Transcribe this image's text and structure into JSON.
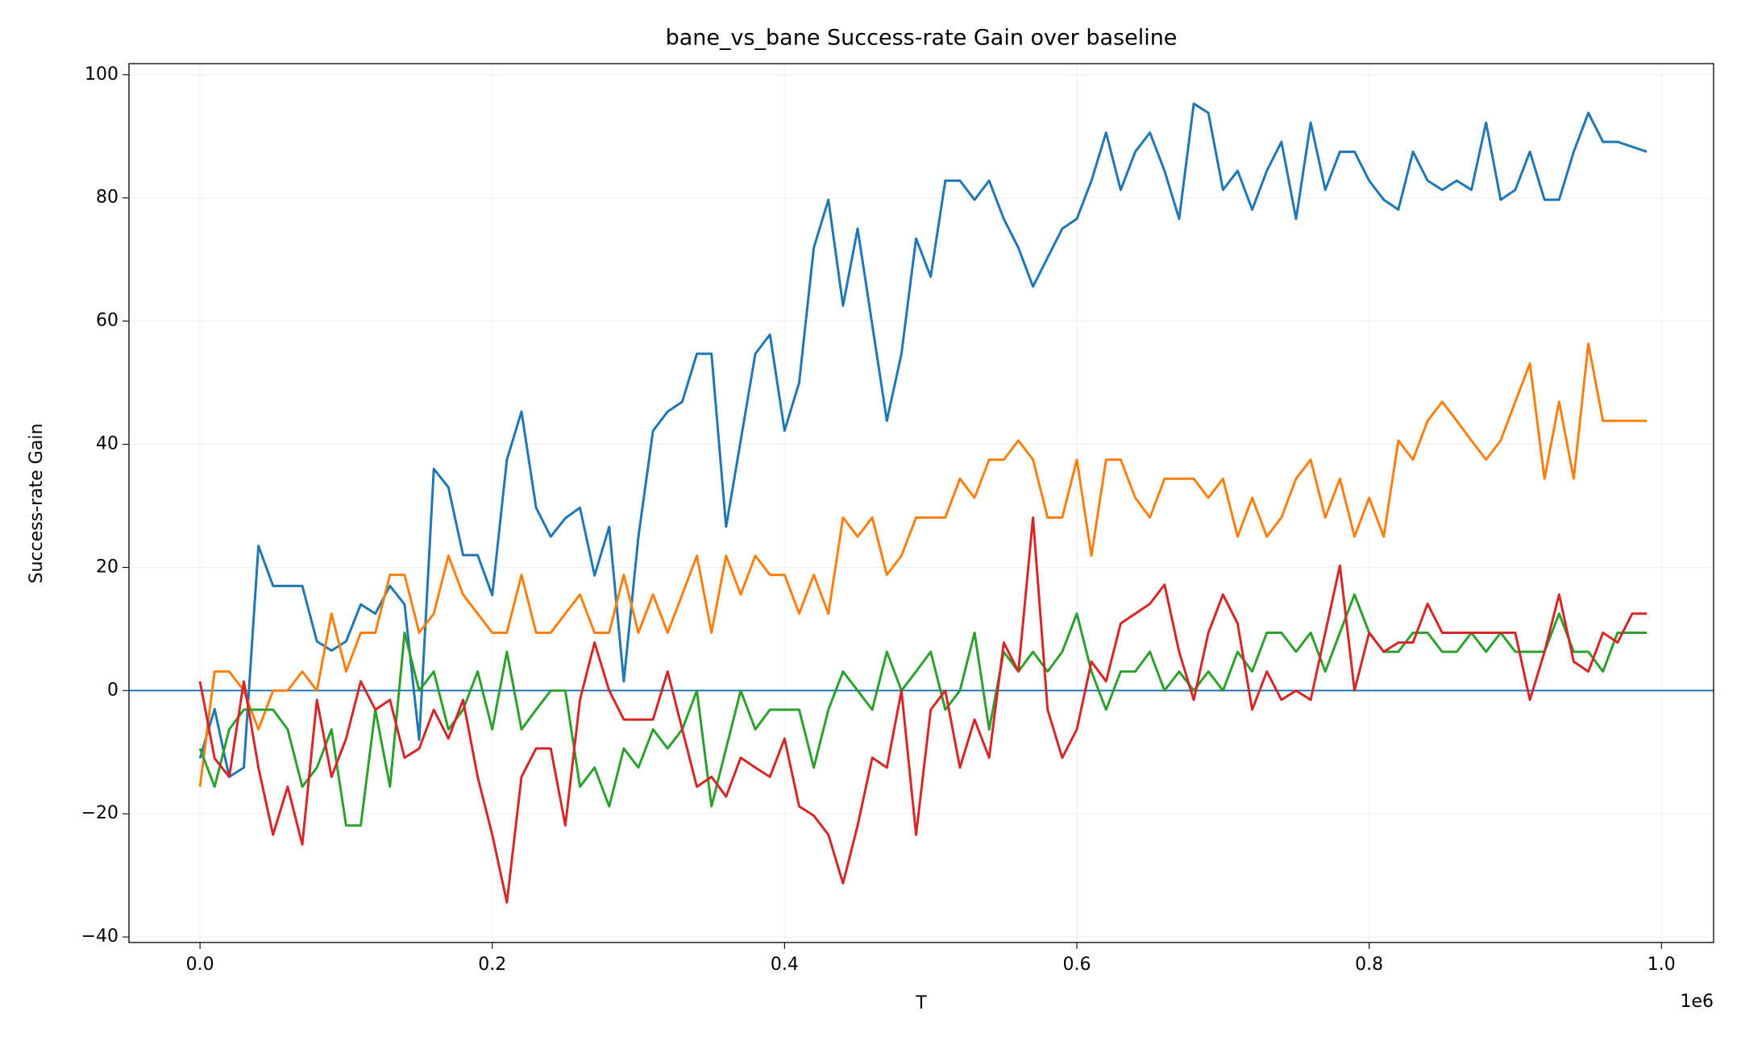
{
  "chart_data": {
    "type": "line",
    "title": "bane_vs_bane Success-rate Gain over baseline",
    "xlabel": "T",
    "ylabel": "Success-rate Gain",
    "x_offset_label": "1e6",
    "x": [
      0,
      0.01,
      0.02,
      0.03,
      0.04,
      0.05,
      0.06,
      0.07,
      0.08,
      0.09,
      0.1,
      0.11,
      0.12,
      0.13,
      0.14,
      0.15,
      0.16,
      0.17,
      0.18,
      0.19,
      0.2,
      0.21,
      0.22,
      0.23,
      0.24,
      0.25,
      0.26,
      0.27,
      0.28,
      0.29,
      0.3,
      0.31,
      0.32,
      0.33,
      0.34,
      0.35,
      0.36,
      0.37,
      0.38,
      0.39,
      0.4,
      0.41,
      0.42,
      0.43,
      0.44,
      0.45,
      0.46,
      0.47,
      0.48,
      0.49,
      0.5,
      0.51,
      0.52,
      0.53,
      0.54,
      0.55,
      0.56,
      0.57,
      0.58,
      0.59,
      0.6,
      0.61,
      0.62,
      0.63,
      0.64,
      0.65,
      0.66,
      0.67,
      0.68,
      0.69,
      0.7,
      0.71,
      0.72,
      0.73,
      0.74,
      0.75,
      0.76,
      0.77,
      0.78,
      0.79,
      0.8,
      0.81,
      0.82,
      0.83,
      0.84,
      0.85,
      0.86,
      0.87,
      0.88,
      0.89,
      0.9,
      0.91,
      0.92,
      0.93,
      0.94,
      0.95,
      0.96,
      0.97,
      0.98,
      0.99
    ],
    "series": [
      {
        "color": "#1f77b4",
        "values": [
          -11,
          -3,
          -14,
          -12.5,
          23.5,
          17,
          17,
          17,
          8,
          6.5,
          8,
          14,
          12.5,
          17,
          14,
          -8,
          36,
          33,
          22,
          22,
          15.5,
          37.5,
          45.3,
          29.7,
          25,
          28,
          29.7,
          18.7,
          26.6,
          1.5,
          25,
          42.2,
          45.3,
          46.9,
          54.7,
          54.7,
          26.6,
          40.6,
          54.7,
          57.8,
          42.2,
          50,
          71.9,
          79.7,
          62.5,
          75,
          59.4,
          43.8,
          54.7,
          73.4,
          67.2,
          82.8,
          82.8,
          79.7,
          82.8,
          76.6,
          71.9,
          65.6,
          70.3,
          75,
          76.6,
          82.8,
          90.6,
          81.3,
          87.5,
          90.6,
          84.4,
          76.6,
          95.3,
          93.8,
          81.3,
          84.4,
          78.1,
          84.4,
          89.1,
          76.6,
          92.2,
          81.3,
          87.5,
          87.5,
          82.8,
          79.7,
          78.1,
          87.5,
          82.8,
          81.3,
          82.8,
          81.3,
          92.2,
          79.7,
          81.3,
          87.5,
          79.7,
          79.7,
          87.5,
          93.8,
          89.1,
          89.1,
          88.3,
          87.5
        ]
      },
      {
        "color": "#ff7f0e",
        "values": [
          -15.6,
          3.1,
          3.1,
          0,
          -6.3,
          0,
          0,
          3.1,
          0,
          12.5,
          3.1,
          9.4,
          9.4,
          18.8,
          18.8,
          9.4,
          12.5,
          21.9,
          15.6,
          12.5,
          9.4,
          9.4,
          18.8,
          9.4,
          9.4,
          12.5,
          15.6,
          9.4,
          9.4,
          18.8,
          9.4,
          15.6,
          9.4,
          15.6,
          21.9,
          9.4,
          21.9,
          15.6,
          21.9,
          18.8,
          18.8,
          12.5,
          18.8,
          12.5,
          28.1,
          25,
          28.1,
          18.8,
          21.9,
          28.1,
          28.1,
          28.1,
          34.4,
          31.3,
          37.5,
          37.5,
          40.6,
          37.5,
          28.1,
          28.1,
          37.5,
          21.9,
          37.5,
          37.5,
          31.3,
          28.1,
          34.4,
          34.4,
          34.4,
          31.3,
          34.4,
          25,
          31.3,
          25,
          28.1,
          34.4,
          37.5,
          28.1,
          34.4,
          25,
          31.3,
          25,
          40.6,
          37.5,
          43.8,
          46.9,
          43.8,
          40.6,
          37.5,
          40.6,
          46.9,
          53.1,
          34.4,
          46.9,
          34.4,
          56.3,
          43.8,
          43.8,
          43.8,
          43.8
        ]
      },
      {
        "color": "#2ca02c",
        "values": [
          -9.4,
          -15.6,
          -6.3,
          -3.1,
          -3.1,
          -3.1,
          -6.3,
          -15.6,
          -12.5,
          -6.3,
          -21.9,
          -21.9,
          -3.1,
          -15.6,
          9.4,
          0,
          3.1,
          -6.3,
          -3.1,
          3.1,
          -6.3,
          6.3,
          -6.3,
          -3.1,
          0,
          0,
          -15.6,
          -12.5,
          -18.8,
          -9.4,
          -12.5,
          -6.3,
          -9.4,
          -6.3,
          0,
          -18.8,
          -9.4,
          0,
          -6.3,
          -3.1,
          -3.1,
          -3.1,
          -12.5,
          -3.1,
          3.1,
          0,
          -3.1,
          6.3,
          0,
          3.1,
          6.3,
          -3.1,
          0,
          9.4,
          -6.3,
          6.3,
          3.1,
          6.3,
          3.1,
          6.3,
          12.5,
          3.1,
          -3.1,
          3.1,
          3.1,
          6.3,
          0,
          3.1,
          0,
          3.1,
          0,
          6.3,
          3.1,
          9.4,
          9.4,
          6.3,
          9.4,
          3.1,
          9.4,
          15.6,
          9.4,
          6.3,
          6.3,
          9.4,
          9.4,
          6.3,
          6.3,
          9.4,
          6.3,
          9.4,
          6.3,
          6.3,
          6.3,
          12.5,
          6.3,
          6.3,
          3.1,
          9.4,
          9.4,
          9.4
        ]
      },
      {
        "color": "#d62728",
        "values": [
          1.5,
          -11,
          -14,
          1.5,
          -12.5,
          -23.4,
          -15.6,
          -25,
          -1.5,
          -14,
          -7.8,
          1.5,
          -3.1,
          -1.5,
          -10.9,
          -9.4,
          -3.1,
          -7.8,
          -1.5,
          -14,
          -23.4,
          -34.4,
          -14,
          -9.4,
          -9.4,
          -21.9,
          -1.5,
          7.8,
          0,
          -4.7,
          -4.7,
          -4.7,
          3.1,
          -6.3,
          -15.6,
          -14,
          -17.2,
          -10.9,
          -12.5,
          -14,
          -7.8,
          -18.8,
          -20.3,
          -23.4,
          -31.3,
          -21.9,
          -10.9,
          -12.5,
          0,
          -23.4,
          -3.1,
          0,
          -12.5,
          -4.7,
          -10.9,
          7.8,
          3.1,
          28.1,
          -3.1,
          -10.9,
          -6.3,
          4.7,
          1.5,
          10.9,
          12.5,
          14.1,
          17.2,
          6.3,
          -1.5,
          9.4,
          15.6,
          10.9,
          -3.1,
          3.1,
          -1.5,
          0,
          -1.5,
          9.4,
          20.3,
          0,
          9.4,
          6.3,
          7.8,
          7.8,
          14.1,
          9.4,
          9.4,
          9.4,
          9.4,
          9.4,
          9.4,
          -1.5,
          6.3,
          15.6,
          4.7,
          3.1,
          9.4,
          7.8,
          12.5,
          12.5
        ]
      }
    ],
    "hline": {
      "value": 0,
      "color": "#1f77b4"
    },
    "xlim": [
      -0.0486,
      1.0357
    ],
    "ylim": [
      -40.9,
      101.8
    ],
    "xticks": [
      {
        "value": 0,
        "label": "0.0"
      },
      {
        "value": 0.2,
        "label": "0.2"
      },
      {
        "value": 0.4,
        "label": "0.4"
      },
      {
        "value": 0.6,
        "label": "0.6"
      },
      {
        "value": 0.8,
        "label": "0.8"
      },
      {
        "value": 1,
        "label": "1.0"
      }
    ],
    "yticks": [
      {
        "value": -40,
        "label": "−40"
      },
      {
        "value": -20,
        "label": "−20"
      },
      0,
      20,
      40,
      60,
      80,
      100
    ],
    "grid": true
  }
}
